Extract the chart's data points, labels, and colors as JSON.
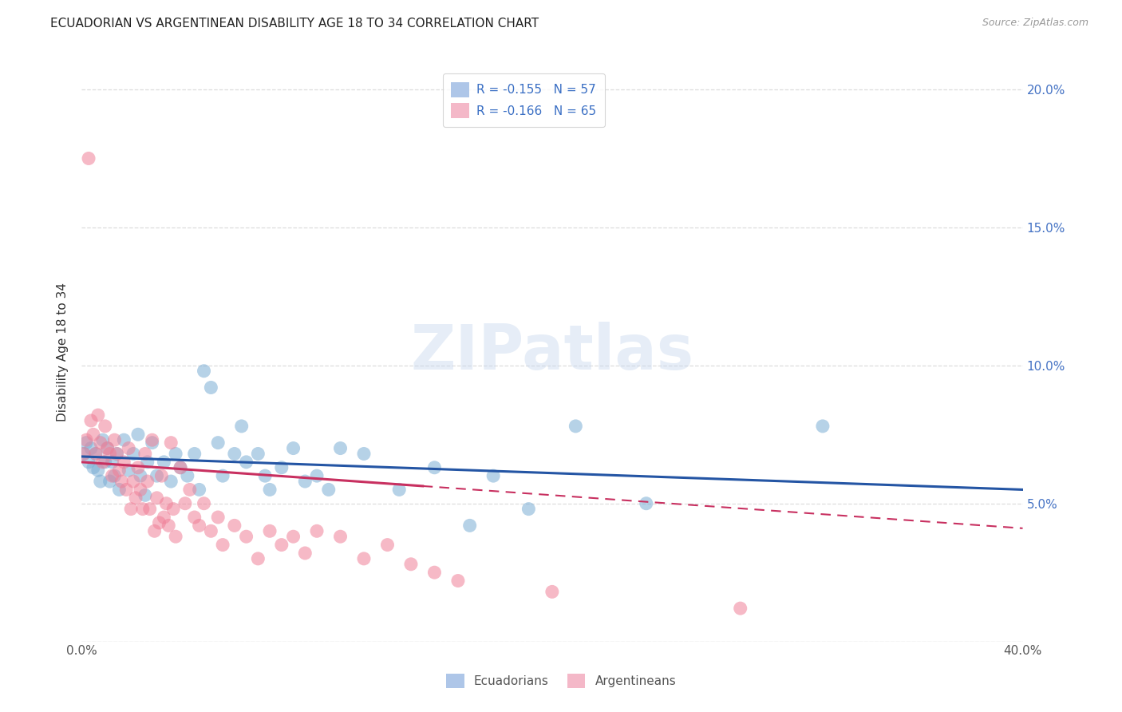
{
  "title": "ECUADORIAN VS ARGENTINEAN DISABILITY AGE 18 TO 34 CORRELATION CHART",
  "source": "Source: ZipAtlas.com",
  "ylabel": "Disability Age 18 to 34",
  "watermark": "ZIPatlas",
  "xlim": [
    0.0,
    0.4
  ],
  "ylim": [
    0.0,
    0.21
  ],
  "xticks": [
    0.0,
    0.05,
    0.1,
    0.15,
    0.2,
    0.25,
    0.3,
    0.35,
    0.4
  ],
  "xticklabels": [
    "0.0%",
    "",
    "",
    "",
    "",
    "",
    "",
    "",
    "40.0%"
  ],
  "yticks": [
    0.0,
    0.05,
    0.1,
    0.15,
    0.2
  ],
  "yticklabels_right": [
    "",
    "5.0%",
    "10.0%",
    "15.0%",
    "20.0%"
  ],
  "ecu_color": "#7aadd4",
  "arg_color": "#f08098",
  "ecu_line_color": "#2455a4",
  "arg_line_color": "#c83060",
  "background_color": "#ffffff",
  "grid_color": "#dddddd",
  "ecu_R": -0.155,
  "ecu_N": 57,
  "arg_R": -0.166,
  "arg_N": 65,
  "ecu_intercept": 0.067,
  "ecu_slope": -0.03,
  "arg_intercept": 0.065,
  "arg_slope": -0.06,
  "arg_line_solid_end": 0.145,
  "ecu_points": [
    [
      0.001,
      0.068
    ],
    [
      0.002,
      0.072
    ],
    [
      0.003,
      0.065
    ],
    [
      0.004,
      0.07
    ],
    [
      0.005,
      0.063
    ],
    [
      0.006,
      0.068
    ],
    [
      0.007,
      0.062
    ],
    [
      0.008,
      0.058
    ],
    [
      0.009,
      0.073
    ],
    [
      0.01,
      0.065
    ],
    [
      0.011,
      0.07
    ],
    [
      0.012,
      0.058
    ],
    [
      0.013,
      0.065
    ],
    [
      0.014,
      0.06
    ],
    [
      0.015,
      0.068
    ],
    [
      0.016,
      0.055
    ],
    [
      0.018,
      0.073
    ],
    [
      0.02,
      0.062
    ],
    [
      0.022,
      0.068
    ],
    [
      0.024,
      0.075
    ],
    [
      0.025,
      0.06
    ],
    [
      0.027,
      0.053
    ],
    [
      0.028,
      0.065
    ],
    [
      0.03,
      0.072
    ],
    [
      0.032,
      0.06
    ],
    [
      0.035,
      0.065
    ],
    [
      0.038,
      0.058
    ],
    [
      0.04,
      0.068
    ],
    [
      0.042,
      0.063
    ],
    [
      0.045,
      0.06
    ],
    [
      0.048,
      0.068
    ],
    [
      0.05,
      0.055
    ],
    [
      0.052,
      0.098
    ],
    [
      0.055,
      0.092
    ],
    [
      0.058,
      0.072
    ],
    [
      0.06,
      0.06
    ],
    [
      0.065,
      0.068
    ],
    [
      0.068,
      0.078
    ],
    [
      0.07,
      0.065
    ],
    [
      0.075,
      0.068
    ],
    [
      0.078,
      0.06
    ],
    [
      0.08,
      0.055
    ],
    [
      0.085,
      0.063
    ],
    [
      0.09,
      0.07
    ],
    [
      0.095,
      0.058
    ],
    [
      0.1,
      0.06
    ],
    [
      0.105,
      0.055
    ],
    [
      0.11,
      0.07
    ],
    [
      0.12,
      0.068
    ],
    [
      0.135,
      0.055
    ],
    [
      0.15,
      0.063
    ],
    [
      0.165,
      0.042
    ],
    [
      0.175,
      0.06
    ],
    [
      0.19,
      0.048
    ],
    [
      0.21,
      0.078
    ],
    [
      0.24,
      0.05
    ],
    [
      0.315,
      0.078
    ]
  ],
  "arg_points": [
    [
      0.001,
      0.068
    ],
    [
      0.002,
      0.073
    ],
    [
      0.003,
      0.175
    ],
    [
      0.004,
      0.08
    ],
    [
      0.005,
      0.075
    ],
    [
      0.006,
      0.068
    ],
    [
      0.007,
      0.082
    ],
    [
      0.008,
      0.072
    ],
    [
      0.009,
      0.065
    ],
    [
      0.01,
      0.078
    ],
    [
      0.011,
      0.07
    ],
    [
      0.012,
      0.068
    ],
    [
      0.013,
      0.06
    ],
    [
      0.014,
      0.073
    ],
    [
      0.015,
      0.068
    ],
    [
      0.016,
      0.062
    ],
    [
      0.017,
      0.058
    ],
    [
      0.018,
      0.065
    ],
    [
      0.019,
      0.055
    ],
    [
      0.02,
      0.07
    ],
    [
      0.021,
      0.048
    ],
    [
      0.022,
      0.058
    ],
    [
      0.023,
      0.052
    ],
    [
      0.024,
      0.063
    ],
    [
      0.025,
      0.055
    ],
    [
      0.026,
      0.048
    ],
    [
      0.027,
      0.068
    ],
    [
      0.028,
      0.058
    ],
    [
      0.029,
      0.048
    ],
    [
      0.03,
      0.073
    ],
    [
      0.031,
      0.04
    ],
    [
      0.032,
      0.052
    ],
    [
      0.033,
      0.043
    ],
    [
      0.034,
      0.06
    ],
    [
      0.035,
      0.045
    ],
    [
      0.036,
      0.05
    ],
    [
      0.037,
      0.042
    ],
    [
      0.038,
      0.072
    ],
    [
      0.039,
      0.048
    ],
    [
      0.04,
      0.038
    ],
    [
      0.042,
      0.063
    ],
    [
      0.044,
      0.05
    ],
    [
      0.046,
      0.055
    ],
    [
      0.048,
      0.045
    ],
    [
      0.05,
      0.042
    ],
    [
      0.052,
      0.05
    ],
    [
      0.055,
      0.04
    ],
    [
      0.058,
      0.045
    ],
    [
      0.06,
      0.035
    ],
    [
      0.065,
      0.042
    ],
    [
      0.07,
      0.038
    ],
    [
      0.075,
      0.03
    ],
    [
      0.08,
      0.04
    ],
    [
      0.085,
      0.035
    ],
    [
      0.09,
      0.038
    ],
    [
      0.095,
      0.032
    ],
    [
      0.1,
      0.04
    ],
    [
      0.11,
      0.038
    ],
    [
      0.12,
      0.03
    ],
    [
      0.13,
      0.035
    ],
    [
      0.14,
      0.028
    ],
    [
      0.15,
      0.025
    ],
    [
      0.16,
      0.022
    ],
    [
      0.2,
      0.018
    ],
    [
      0.28,
      0.012
    ]
  ]
}
